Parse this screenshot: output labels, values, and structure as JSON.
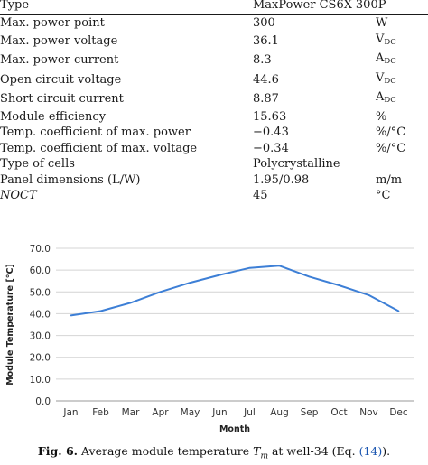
{
  "table": {
    "header": {
      "label": "Type",
      "value": "MaxPower CS6X-300P"
    },
    "rows": [
      {
        "label": "Max. power point",
        "value": "300",
        "unit": "W"
      },
      {
        "label": "Max. power voltage",
        "value": "36.1",
        "unit": "V",
        "unit_sub": "DC"
      },
      {
        "label": "Max. power current",
        "value": "8.3",
        "unit": "A",
        "unit_sub": "DC"
      },
      {
        "label": "Open circuit voltage",
        "value": "44.6",
        "unit": "V",
        "unit_sub": "DC"
      },
      {
        "label": "Short circuit current",
        "value": "8.87",
        "unit": "A",
        "unit_sub": "DC"
      },
      {
        "label": "Module efficiency",
        "value": "15.63",
        "unit": "%"
      },
      {
        "label": "Temp. coefficient of max. power",
        "value": "−0.43",
        "unit": "%/°C"
      },
      {
        "label": "Temp. coefficient of max. voltage",
        "value": "−0.34",
        "unit": "%/°C"
      },
      {
        "label": "Type of cells",
        "value": "Polycrystalline",
        "unit": ""
      },
      {
        "label": "Panel dimensions (L/W)",
        "value": "1.95/0.98",
        "unit": "m/m"
      },
      {
        "label": "NOCT",
        "value": "45",
        "unit": "°C",
        "italic_label": true
      }
    ]
  },
  "chart_data": {
    "type": "line",
    "title": "",
    "xlabel": "Month",
    "ylabel": "Module Temperature [°C]",
    "categories": [
      "Jan",
      "Feb",
      "Mar",
      "Apr",
      "May",
      "Jun",
      "Jul",
      "Aug",
      "Sep",
      "Oct",
      "Nov",
      "Dec"
    ],
    "series": [
      {
        "values": [
          39.2,
          41.2,
          45.0,
          50.0,
          54.2,
          57.8,
          61.0,
          62.0,
          57.0,
          53.0,
          48.5,
          41.2
        ],
        "color": "#3d7fd6"
      }
    ],
    "ylim": [
      0,
      70
    ],
    "yticks": [
      "0.0",
      "10.0",
      "20.0",
      "30.0",
      "40.0",
      "50.0",
      "60.0",
      "70.0"
    ],
    "grid": "horizontal",
    "legend": "none"
  },
  "caption": {
    "label": "Fig. 6.",
    "text_before": "Average module temperature ",
    "var_main": "T",
    "var_sub": "m",
    "text_mid": " at well-34 (Eq. ",
    "ref": "(14)",
    "text_end": ")."
  }
}
